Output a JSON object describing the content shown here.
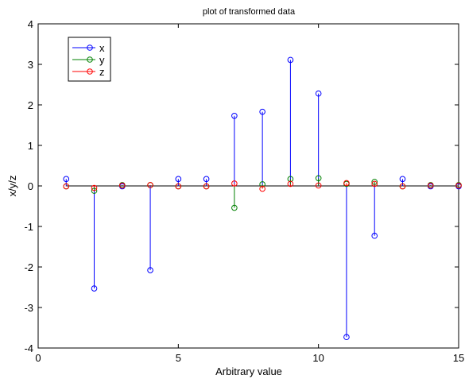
{
  "chart_data": {
    "type": "stem",
    "title": "plot of transformed data",
    "xlabel": "Arbitrary value",
    "ylabel": "x/y/z",
    "xlim": [
      0,
      15
    ],
    "ylim": [
      -4,
      4
    ],
    "xticks": [
      0,
      5,
      10,
      15
    ],
    "yticks": [
      -4,
      -3,
      -2,
      -1,
      0,
      1,
      2,
      3,
      4
    ],
    "legend_position": "top-left",
    "baseline": 0,
    "x": [
      1,
      2,
      3,
      4,
      5,
      6,
      7,
      8,
      9,
      10,
      11,
      12,
      13,
      14,
      15
    ],
    "series": [
      {
        "name": "x",
        "color": "#0000ff",
        "values": [
          0.17,
          -2.53,
          -0.01,
          -2.08,
          0.17,
          0.17,
          1.73,
          1.83,
          3.11,
          2.28,
          -3.73,
          -1.23,
          0.17,
          -0.01,
          -0.01
        ]
      },
      {
        "name": "y",
        "color": "#008000",
        "values": [
          -0.01,
          -0.12,
          0.02,
          0.02,
          -0.01,
          -0.01,
          -0.54,
          0.04,
          0.17,
          0.19,
          0.05,
          0.1,
          -0.01,
          0.02,
          0.02
        ]
      },
      {
        "name": "z",
        "color": "#ff0000",
        "values": [
          -0.01,
          -0.05,
          0.01,
          0.02,
          -0.01,
          -0.01,
          0.06,
          -0.07,
          0.05,
          0.01,
          0.07,
          0.05,
          -0.01,
          0.01,
          0.01
        ]
      }
    ]
  }
}
